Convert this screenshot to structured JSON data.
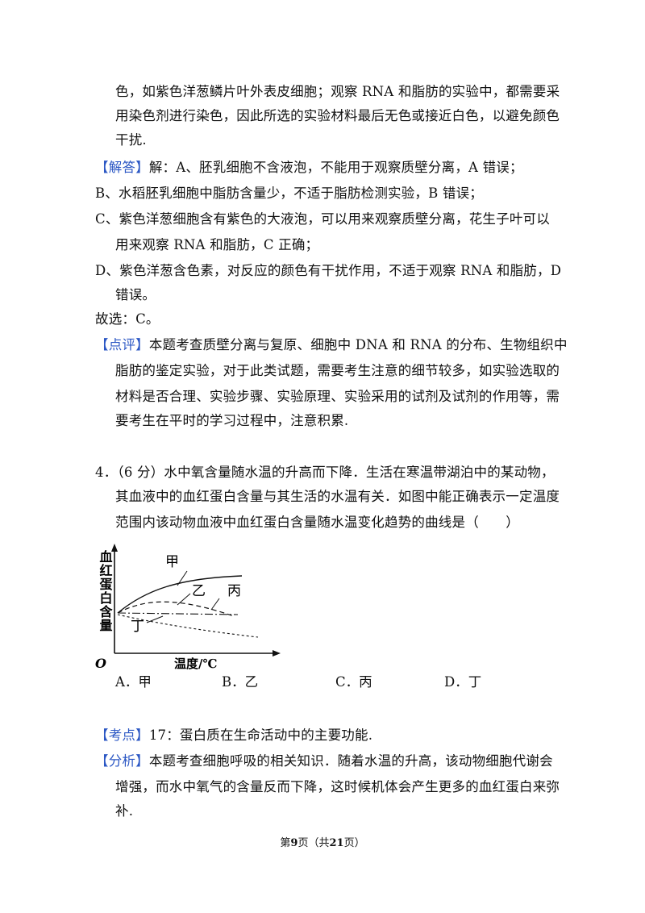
{
  "lines": [
    {
      "id": "l0",
      "text": "色，如紫色洋葱鳞片叶外表皮细胞；观察 RNA 和脂肪的实验中，都需要采"
    },
    {
      "id": "l1",
      "text": "用染色剂进行染色，因此所选的实验材料最后无色或接近白色，以避免颜色"
    },
    {
      "id": "l2",
      "text": "干扰."
    },
    {
      "id": "l3_tag",
      "text": "【解答】"
    },
    {
      "id": "l3",
      "text": "解：A、胚乳细胞不含液泡，不能用于观察质壁分离，A 错误；"
    },
    {
      "id": "l4",
      "text": "B、水稻胚乳细胞中脂肪含量少，不适于脂肪检测实验，B 错误；"
    },
    {
      "id": "l5",
      "text": "C、紫色洋葱细胞含有紫色的大液泡，可以用来观察质壁分离，花生子叶可以"
    },
    {
      "id": "l6",
      "text": "用来观察 RNA 和脂肪，C 正确；"
    },
    {
      "id": "l7",
      "text": "D、紫色洋葱含色素，对反应的颜色有干扰作用，不适于观察 RNA 和脂肪，D"
    },
    {
      "id": "l8",
      "text": "错误。"
    },
    {
      "id": "l9",
      "text": "故选：C。"
    },
    {
      "id": "l10_tag",
      "text": "【点评】"
    },
    {
      "id": "l10",
      "text": "本题考查质壁分离与复原、细胞中 DNA 和 RNA 的分布、生物组织中"
    },
    {
      "id": "l11",
      "text": "脂肪的鉴定实验，对于此类试题，需要考生注意的细节较多，如实验选取的"
    },
    {
      "id": "l12",
      "text": "材料是否合理、实验步骤、实验原理、实验采用的试剂及试剂的作用等，需"
    },
    {
      "id": "l13",
      "text": "要考生在平时的学习过程中，注意积累."
    },
    {
      "id": "q1",
      "text": "4．（6 分）水中氧含量随水温的升高而下降．生活在寒温带湖泊中的某动物，"
    },
    {
      "id": "q2",
      "text": "其血液中的血红蛋白含量与其生活的水温有关．如图中能正确表示一定温度"
    },
    {
      "id": "q3",
      "text": "范围内该动物血液中血红蛋白含量随水温变化趋势的曲线是（　　）"
    },
    {
      "id": "k_tag",
      "text": "【考点】"
    },
    {
      "id": "k",
      "text": "17：蛋白质在生命活动中的主要功能."
    },
    {
      "id": "f_tag",
      "text": "【分析】"
    },
    {
      "id": "f1",
      "text": "本题考查细胞呼吸的相关知识．随着水温的升高，该动物细胞代谢会"
    },
    {
      "id": "f2",
      "text": "增强，而水中氧气的含量反而下降，这时候机体会产生更多的血红蛋白来弥"
    },
    {
      "id": "f3",
      "text": "补."
    }
  ],
  "choices": {
    "a": "A．甲",
    "b": "B．乙",
    "c": "C．丙",
    "d": "D．丁"
  },
  "figure": {
    "ylabel": "血红蛋白含量",
    "xlabel": "温度/℃",
    "origin": "O",
    "curve_labels": {
      "jia": "甲",
      "yi": "乙",
      "bing": "丙",
      "ding": "丁"
    }
  },
  "footer": {
    "pre": "第",
    "page": "9",
    "mid": "页（共",
    "total": "21",
    "post": "页）"
  },
  "colors": {
    "tag": "#2b57c4"
  }
}
